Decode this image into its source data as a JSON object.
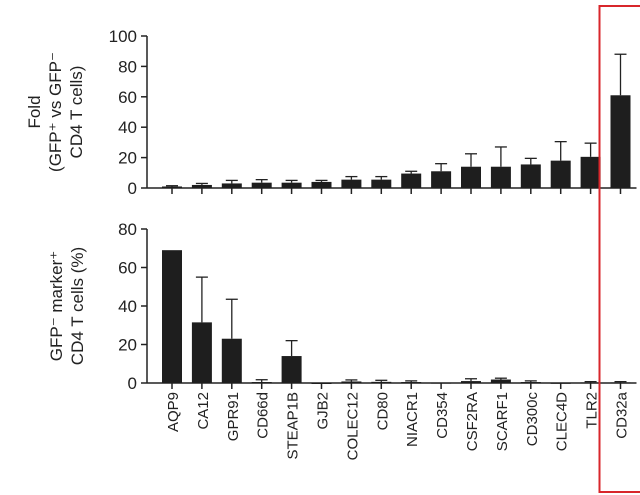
{
  "chart_data": [
    {
      "type": "bar",
      "ylabel": [
        "Fold",
        "(GFP⁺ vs GFP⁻",
        "CD4 T cells)"
      ],
      "ylim": [
        0,
        100
      ],
      "yticks": [
        0,
        20,
        40,
        60,
        80,
        100
      ],
      "categories": [
        "AQP9",
        "CA12",
        "GPR91",
        "CD66d",
        "STEAP1B",
        "GJB2",
        "COLEC12",
        "CD80",
        "NIACR1",
        "CD354",
        "CSF2RA",
        "SCARF1",
        "CD300c",
        "CLEC4D",
        "TLR2",
        "CD32a"
      ],
      "values": [
        1,
        2,
        3,
        3.5,
        3.5,
        4,
        5.5,
        5.5,
        9.5,
        11,
        14,
        14,
        15.5,
        18,
        20.5,
        61
      ],
      "errors": [
        0.5,
        1,
        2,
        2,
        1.5,
        1,
        2,
        2,
        1.5,
        5,
        8.5,
        13,
        4,
        12.5,
        9,
        27
      ],
      "bar_color": "#1e1e1e"
    },
    {
      "type": "bar",
      "ylabel": [
        "GFP⁻ marker⁺",
        "CD4 T cells (%)"
      ],
      "ylim": [
        0,
        80
      ],
      "yticks": [
        0,
        20,
        40,
        60,
        80
      ],
      "categories": [
        "AQP9",
        "CA12",
        "GPR91",
        "CD66d",
        "STEAP1B",
        "GJB2",
        "COLEC12",
        "CD80",
        "NIACR1",
        "CD354",
        "CSF2RA",
        "SCARF1",
        "CD300c",
        "CLEC4D",
        "TLR2",
        "CD32a"
      ],
      "values": [
        69,
        31.5,
        23,
        0.5,
        14,
        0,
        0.8,
        0.6,
        0.5,
        0.2,
        1,
        1.8,
        0.5,
        0.1,
        0.3,
        0.3
      ],
      "errors": [
        0,
        23.5,
        20.5,
        1.2,
        8,
        0,
        0.8,
        0.8,
        0.6,
        0,
        1.2,
        0.7,
        0.6,
        0,
        0.4,
        0.4
      ],
      "bar_color": "#1e1e1e"
    }
  ],
  "highlight": {
    "category": "CD32a",
    "color": "#d8262b"
  }
}
